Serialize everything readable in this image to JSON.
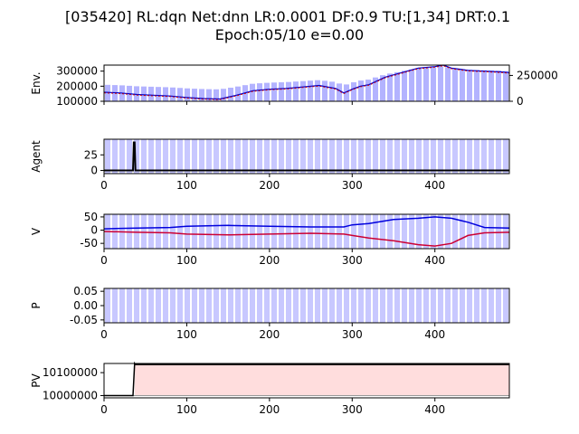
{
  "title_line1": "[035420] RL:dqn Net:dnn LR:0.0001 DF:0.9 TU:[1,34] DRT:0.1",
  "title_line2": "Epoch:05/10 e=0.00",
  "chart_data": [
    {
      "type": "line",
      "ylabel": "Env.",
      "xlim": [
        0,
        490
      ],
      "ylim": [
        100000,
        340000
      ],
      "yticks": [
        "100000",
        "200000",
        "300000"
      ],
      "secondary_axis": {
        "type": "bar",
        "yticks": [
          "0",
          "250000"
        ],
        "ylim": [
          0,
          350000
        ]
      },
      "colors": {
        "bars": "#b3b3ff",
        "line": "#0000cc",
        "line2": "#cc0000"
      },
      "series": [
        {
          "name": "",
          "x": [
            0,
            20,
            40,
            60,
            80,
            100,
            120,
            140,
            160,
            180,
            200,
            220,
            240,
            260,
            280,
            290,
            300,
            310,
            320,
            340,
            360,
            380,
            400,
            410,
            420,
            440,
            460,
            480,
            490
          ],
          "values": [
            160000,
            155000,
            145000,
            140000,
            135000,
            125000,
            118000,
            115000,
            140000,
            170000,
            180000,
            185000,
            195000,
            205000,
            185000,
            155000,
            180000,
            200000,
            210000,
            260000,
            290000,
            320000,
            330000,
            340000,
            320000,
            305000,
            300000,
            295000,
            290000
          ]
        }
      ]
    },
    {
      "type": "line",
      "ylabel": "Agent",
      "xlim": [
        0,
        490
      ],
      "ylim": [
        -5,
        50
      ],
      "yticks": [
        "0",
        "25"
      ],
      "xticks": [
        "0",
        "100",
        "200",
        "300",
        "400"
      ],
      "series": [
        {
          "name": "",
          "x": [
            0,
            35,
            36,
            37,
            38,
            490
          ],
          "values": [
            0,
            0,
            45,
            45,
            0,
            0
          ]
        }
      ]
    },
    {
      "type": "line",
      "ylabel": "V",
      "xlim": [
        0,
        490
      ],
      "ylim": [
        -70,
        60
      ],
      "yticks": [
        "-50",
        "0",
        "50"
      ],
      "xticks": [
        "0",
        "100",
        "200",
        "300",
        "400"
      ],
      "colors": {
        "a": "#0000dd",
        "b": "#cc0033"
      },
      "series": [
        {
          "name": "",
          "x": [
            0,
            40,
            80,
            100,
            150,
            200,
            250,
            290,
            300,
            320,
            350,
            380,
            400,
            420,
            440,
            460,
            490
          ],
          "values": [
            5,
            8,
            10,
            15,
            18,
            15,
            12,
            12,
            20,
            25,
            40,
            45,
            50,
            45,
            30,
            10,
            8
          ]
        },
        {
          "name": "",
          "x": [
            0,
            40,
            80,
            100,
            150,
            200,
            250,
            290,
            300,
            320,
            350,
            380,
            400,
            420,
            440,
            460,
            490
          ],
          "values": [
            -5,
            -8,
            -10,
            -15,
            -18,
            -15,
            -12,
            -15,
            -20,
            -30,
            -40,
            -55,
            -60,
            -50,
            -20,
            -10,
            -8
          ]
        }
      ]
    },
    {
      "type": "line",
      "ylabel": "P",
      "xlim": [
        0,
        490
      ],
      "ylim": [
        -0.06,
        0.06
      ],
      "yticks": [
        "0.05",
        "0.00",
        "-0.05"
      ],
      "xticks": [
        "0",
        "100",
        "200",
        "300",
        "400"
      ],
      "series": [
        {
          "name": "",
          "x": [
            0,
            490
          ],
          "values": [
            0,
            0
          ]
        }
      ]
    },
    {
      "type": "area",
      "ylabel": "PV",
      "xlim": [
        0,
        490
      ],
      "ylim": [
        9990000,
        10140000
      ],
      "yticks": [
        "10000000",
        "10100000"
      ],
      "xticks": [
        "0",
        "100",
        "200",
        "300",
        "400"
      ],
      "colors": {
        "fill": "#ffdddd",
        "line": "#000000",
        "base": "#999999"
      },
      "series": [
        {
          "name": "",
          "x": [
            0,
            35,
            37,
            38,
            490
          ],
          "values": [
            10000000,
            10000000,
            10140000,
            10135000,
            10135000
          ]
        }
      ]
    }
  ]
}
